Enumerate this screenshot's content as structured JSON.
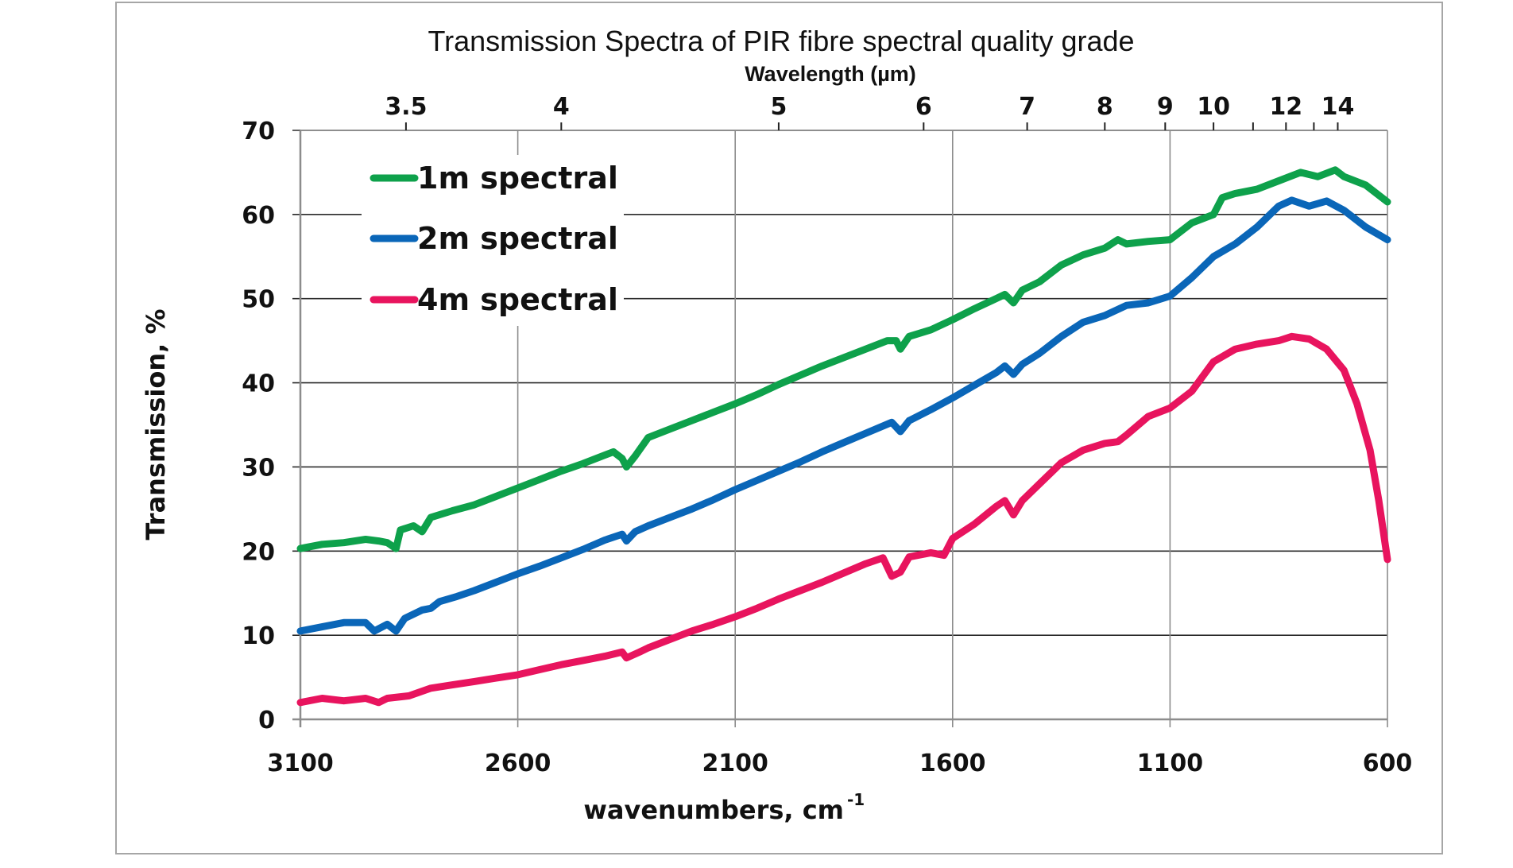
{
  "chart_data": {
    "type": "line",
    "title": "Transmission Spectra  of  PIR fibre  spectral  quality  grade",
    "xlabel": "wavenumbers, cm",
    "xlabel_superscript": "-1",
    "ylabel": "Transmission, %",
    "top_axis_label": "Wavelength (µm)",
    "xlim": [
      3100,
      600
    ],
    "ylim": [
      0,
      70
    ],
    "x_ticks": [
      3100,
      2600,
      2100,
      1600,
      1100,
      600
    ],
    "x_tick_labels": [
      "3100",
      "2600",
      "2100",
      "1600",
      "1100",
      "600"
    ],
    "y_ticks": [
      0,
      10,
      20,
      30,
      40,
      50,
      60,
      70
    ],
    "y_tick_labels": [
      "0",
      "10",
      "20",
      "30",
      "40",
      "50",
      "60",
      "70"
    ],
    "top_ticks": [
      {
        "wavelength": 3.5,
        "label": "3.5"
      },
      {
        "wavelength": 4,
        "label": "4"
      },
      {
        "wavelength": 5,
        "label": "5"
      },
      {
        "wavelength": 6,
        "label": "6"
      },
      {
        "wavelength": 7,
        "label": "7"
      },
      {
        "wavelength": 8,
        "label": "8"
      },
      {
        "wavelength": 9,
        "label": "9"
      },
      {
        "wavelength": 10,
        "label": "10"
      },
      {
        "wavelength": 11,
        "label": ""
      },
      {
        "wavelength": 12,
        "label": "12"
      },
      {
        "wavelength": 13,
        "label": ""
      },
      {
        "wavelength": 14,
        "label": "14"
      }
    ],
    "grid": "on",
    "legend_position": "top-left",
    "series": [
      {
        "name": "1m spectral",
        "color": "#0ea14b",
        "x": [
          3100,
          3050,
          3000,
          2950,
          2920,
          2900,
          2880,
          2870,
          2840,
          2820,
          2800,
          2750,
          2700,
          2650,
          2600,
          2550,
          2500,
          2450,
          2420,
          2380,
          2360,
          2350,
          2330,
          2300,
          2250,
          2200,
          2150,
          2100,
          2050,
          2000,
          1950,
          1900,
          1850,
          1800,
          1750,
          1730,
          1720,
          1700,
          1650,
          1600,
          1550,
          1500,
          1480,
          1460,
          1440,
          1400,
          1350,
          1300,
          1250,
          1220,
          1200,
          1150,
          1100,
          1050,
          1000,
          980,
          950,
          900,
          850,
          800,
          760,
          720,
          700,
          650,
          600
        ],
        "y": [
          20.3,
          20.8,
          21.0,
          21.4,
          21.2,
          21.0,
          20.3,
          22.5,
          23.0,
          22.3,
          24.0,
          24.8,
          25.5,
          26.5,
          27.5,
          28.5,
          29.5,
          30.4,
          31.0,
          31.8,
          31.0,
          30.0,
          31.3,
          33.5,
          34.5,
          35.5,
          36.5,
          37.5,
          38.6,
          39.8,
          40.9,
          42.0,
          43.0,
          44.0,
          45.0,
          45.0,
          44.0,
          45.5,
          46.3,
          47.5,
          48.8,
          50.0,
          50.5,
          49.5,
          51.0,
          52.0,
          54.0,
          55.2,
          56.0,
          57.0,
          56.5,
          56.8,
          57.0,
          59.0,
          60.0,
          62.0,
          62.5,
          63.0,
          64.0,
          65.0,
          64.5,
          65.3,
          64.5,
          63.5,
          61.5
        ]
      },
      {
        "name": "2m spectral",
        "color": "#0a66b8",
        "x": [
          3100,
          3050,
          3000,
          2950,
          2930,
          2900,
          2880,
          2860,
          2820,
          2800,
          2780,
          2740,
          2700,
          2650,
          2600,
          2550,
          2500,
          2450,
          2400,
          2360,
          2350,
          2330,
          2300,
          2250,
          2200,
          2150,
          2100,
          2050,
          2000,
          1950,
          1900,
          1850,
          1800,
          1740,
          1720,
          1700,
          1650,
          1600,
          1550,
          1500,
          1480,
          1460,
          1440,
          1400,
          1350,
          1300,
          1250,
          1200,
          1150,
          1100,
          1050,
          1000,
          950,
          900,
          850,
          820,
          780,
          740,
          700,
          650,
          600
        ],
        "y": [
          10.5,
          11.0,
          11.5,
          11.5,
          10.5,
          11.3,
          10.5,
          12.0,
          13.0,
          13.2,
          14.0,
          14.6,
          15.3,
          16.3,
          17.3,
          18.2,
          19.2,
          20.2,
          21.3,
          22.0,
          21.2,
          22.3,
          23.0,
          24.0,
          25.0,
          26.1,
          27.3,
          28.4,
          29.5,
          30.6,
          31.8,
          32.9,
          34.0,
          35.3,
          34.2,
          35.5,
          36.8,
          38.2,
          39.7,
          41.2,
          42.0,
          41.0,
          42.2,
          43.5,
          45.5,
          47.2,
          48.0,
          49.2,
          49.5,
          50.3,
          52.5,
          55.0,
          56.5,
          58.5,
          61.0,
          61.7,
          61.0,
          61.6,
          60.5,
          58.5,
          57.0
        ]
      },
      {
        "name": "4m spectral",
        "color": "#e8145e",
        "x": [
          3100,
          3050,
          3000,
          2950,
          2920,
          2900,
          2850,
          2800,
          2750,
          2700,
          2650,
          2600,
          2550,
          2500,
          2450,
          2400,
          2360,
          2350,
          2320,
          2300,
          2250,
          2200,
          2150,
          2100,
          2050,
          2000,
          1950,
          1900,
          1850,
          1800,
          1760,
          1740,
          1720,
          1700,
          1650,
          1620,
          1600,
          1550,
          1500,
          1480,
          1460,
          1440,
          1400,
          1350,
          1300,
          1250,
          1220,
          1200,
          1150,
          1100,
          1050,
          1000,
          950,
          900,
          850,
          820,
          780,
          740,
          700,
          670,
          640,
          620,
          600
        ],
        "y": [
          2.0,
          2.5,
          2.2,
          2.5,
          2.0,
          2.5,
          2.8,
          3.7,
          4.1,
          4.5,
          4.9,
          5.3,
          5.9,
          6.5,
          7.0,
          7.5,
          8.0,
          7.3,
          8.0,
          8.5,
          9.5,
          10.5,
          11.3,
          12.2,
          13.2,
          14.3,
          15.3,
          16.3,
          17.4,
          18.5,
          19.2,
          17.0,
          17.5,
          19.3,
          19.8,
          19.5,
          21.5,
          23.2,
          25.3,
          26.0,
          24.3,
          26.0,
          28.0,
          30.5,
          32.0,
          32.8,
          33.0,
          33.8,
          36.0,
          37.0,
          39.0,
          42.5,
          44.0,
          44.6,
          45.0,
          45.5,
          45.2,
          44.0,
          41.5,
          37.5,
          32.0,
          26.0,
          19.0
        ]
      }
    ]
  }
}
